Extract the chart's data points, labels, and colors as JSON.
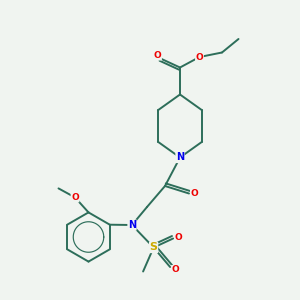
{
  "bg_color": "#f0f4f0",
  "bond_color": "#2d6e5a",
  "atom_colors": {
    "N": "#0000ee",
    "O": "#ee0000",
    "S": "#ccaa00",
    "C": "#2d6e5a"
  },
  "figsize": [
    3.0,
    3.0
  ],
  "dpi": 100,
  "lw": 1.4,
  "fs": 6.5
}
